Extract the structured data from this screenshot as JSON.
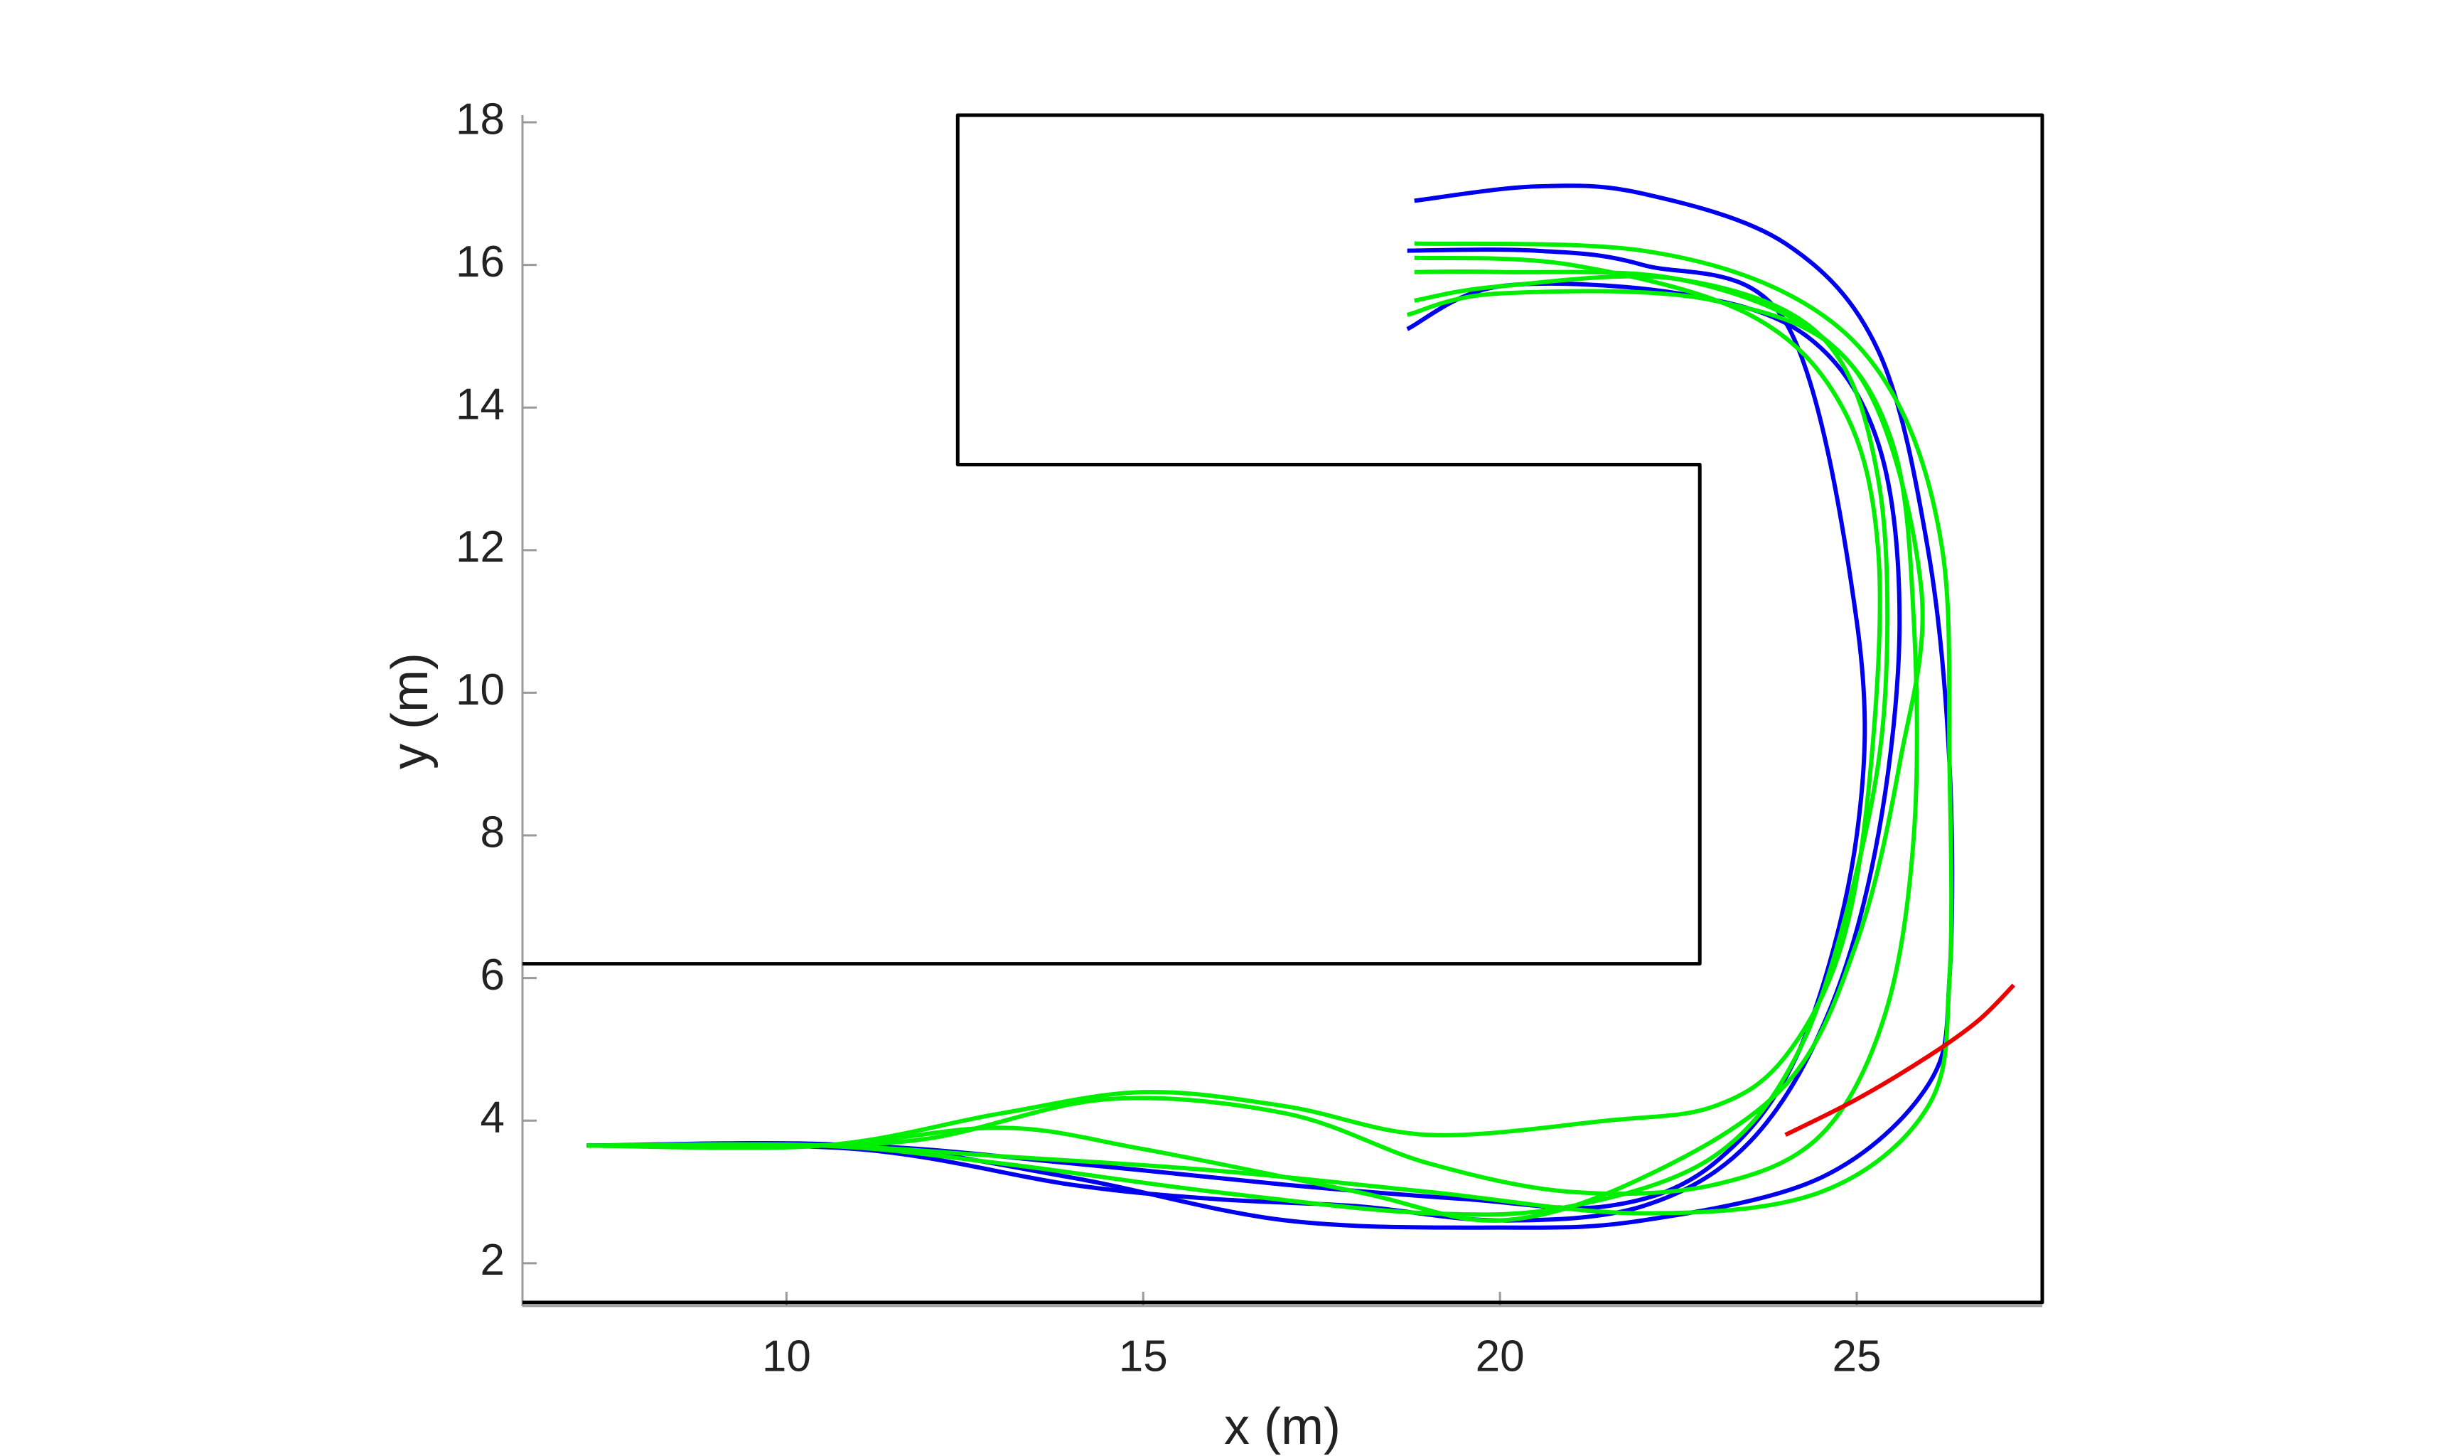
{
  "chart_data": {
    "type": "line",
    "xlabel": "x (m)",
    "ylabel": "y (m)",
    "xlim": [
      6.3,
      27.6
    ],
    "ylim": [
      1.4,
      18.1
    ],
    "xticks": [
      10,
      15,
      20,
      25
    ],
    "yticks": [
      2,
      4,
      6,
      8,
      10,
      12,
      14,
      16,
      18
    ],
    "grid": false,
    "series": [
      {
        "color": "#000000",
        "x": [
          6.3,
          27.6,
          27.6,
          12.4,
          12.4,
          22.8,
          22.8,
          6.3
        ],
        "y": [
          1.45,
          1.45,
          18.1,
          18.1,
          13.2,
          13.2,
          6.2,
          6.2
        ]
      },
      {
        "color": "#0000ee",
        "x": [
          7.2,
          11,
          14,
          17,
          20,
          22,
          24.5,
          26,
          26.3,
          26.3,
          26,
          25.3,
          24,
          22,
          20.5,
          18.8
        ],
        "y": [
          3.65,
          3.65,
          3.2,
          2.6,
          2.5,
          2.6,
          3.2,
          4.5,
          6,
          9,
          12,
          14.8,
          16.3,
          17,
          17.1,
          16.9
        ]
      },
      {
        "color": "#0000ee",
        "x": [
          7.2,
          11,
          14,
          16,
          18,
          20,
          22,
          23.5,
          24.6,
          25.3,
          25.6,
          25.3,
          24.3,
          22.5,
          20,
          18.7
        ],
        "y": [
          3.65,
          3.6,
          3.1,
          2.9,
          2.8,
          2.6,
          2.8,
          3.7,
          5.5,
          8,
          11,
          13.5,
          15,
          15.6,
          15.7,
          15.1
        ]
      },
      {
        "color": "#0000ee",
        "x": [
          7.2,
          11,
          14,
          17,
          19.5,
          21.5,
          23,
          24.2,
          25,
          25,
          24,
          22,
          20.5,
          18.7
        ],
        "y": [
          3.65,
          3.65,
          3.4,
          3.1,
          2.9,
          2.8,
          3.4,
          5,
          8,
          11,
          15.2,
          16,
          16.2,
          16.2
        ]
      },
      {
        "color": "#00ee00",
        "x": [
          7.2,
          10,
          12,
          14.5,
          17,
          19,
          21,
          23,
          24.5,
          25.4,
          25.8,
          25.8,
          25.5,
          24.5,
          22.5,
          20,
          18.8
        ],
        "y": [
          3.65,
          3.65,
          3.75,
          4.3,
          4.1,
          3.4,
          3,
          3.1,
          3.8,
          5.5,
          8,
          11,
          13.5,
          15,
          15.8,
          15.9,
          15.9
        ]
      },
      {
        "color": "#00ee00",
        "x": [
          7.2,
          10.5,
          13,
          16,
          19,
          21,
          23,
          24.2,
          25,
          25.4,
          25.3,
          24.5,
          22.5,
          20,
          18.8
        ],
        "y": [
          3.65,
          3.65,
          3.4,
          3,
          2.7,
          2.8,
          3.5,
          5,
          7.5,
          10,
          13,
          15,
          15.8,
          15.7,
          15.5
        ]
      },
      {
        "color": "#00ee00",
        "x": [
          7.2,
          10.5,
          13,
          16,
          19,
          22,
          24.5,
          26,
          26.3,
          26.3,
          26.2,
          25.5,
          24.2,
          22,
          18.8
        ],
        "y": [
          3.65,
          3.65,
          3.5,
          3.3,
          3,
          2.7,
          3,
          4.2,
          6,
          9,
          12,
          14.2,
          15.5,
          16.2,
          16.3
        ]
      },
      {
        "color": "#00ee00",
        "x": [
          7.2,
          10.5,
          13,
          15,
          18,
          20,
          22,
          24,
          25,
          25.6,
          25.9,
          25,
          23,
          20,
          18.7
        ],
        "y": [
          3.65,
          3.65,
          3.9,
          3.6,
          3,
          2.6,
          3.2,
          4.5,
          6.5,
          9,
          11.5,
          14.5,
          15.5,
          15.6,
          15.3
        ]
      },
      {
        "color": "#00ee00",
        "x": [
          7.2,
          10.5,
          13,
          15,
          17,
          19,
          21.5,
          23,
          24,
          24.8,
          25.2,
          25.3,
          24.8,
          23.5,
          21,
          18.8
        ],
        "y": [
          3.65,
          3.65,
          4.1,
          4.4,
          4.2,
          3.8,
          4,
          4.2,
          4.9,
          6.5,
          9,
          12,
          14,
          15.3,
          16,
          16.1
        ]
      },
      {
        "color": "#ee0000",
        "x": [
          24,
          25,
          26,
          26.7,
          27.2
        ],
        "y": [
          3.8,
          4.3,
          4.9,
          5.4,
          5.9
        ]
      }
    ]
  }
}
